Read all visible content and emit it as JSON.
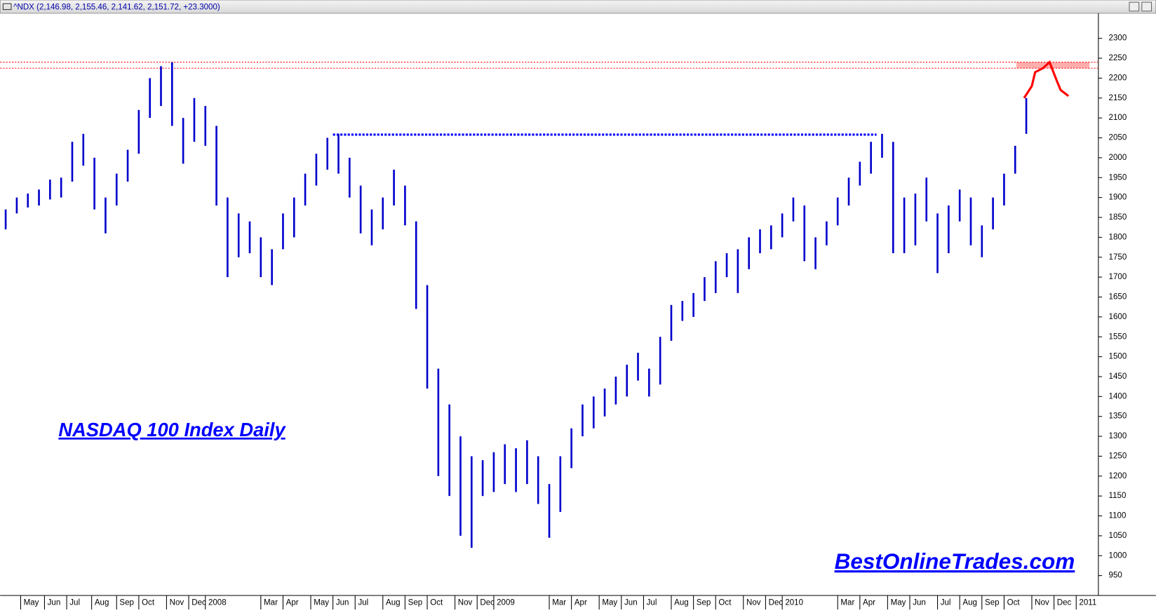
{
  "chart_data": {
    "type": "ohlc",
    "header": "^NDX (2,146.98, 2,155.46, 2,141.62, 2,151.72, +23.3000)",
    "title": "NASDAQ 100 Index Daily",
    "watermark": "BestOnlineTrades.com",
    "color": "#0000cc",
    "xlim": [
      0,
      99
    ],
    "ylim": [
      900,
      2363
    ],
    "yticks": [
      950,
      1000,
      1050,
      1100,
      1150,
      1200,
      1250,
      1300,
      1350,
      1400,
      1450,
      1500,
      1550,
      1600,
      1650,
      1700,
      1750,
      1800,
      1850,
      1900,
      1950,
      2000,
      2050,
      2100,
      2150,
      2200,
      2250,
      2300
    ],
    "xticks": [
      {
        "value": 1.85,
        "label": "May"
      },
      {
        "value": 4,
        "label": "Jun"
      },
      {
        "value": 6,
        "label": "Jul"
      },
      {
        "value": 8.25,
        "label": "Aug"
      },
      {
        "value": 10.5,
        "label": "Sep"
      },
      {
        "value": 12.5,
        "label": "Oct"
      },
      {
        "value": 15,
        "label": "Nov"
      },
      {
        "value": 17,
        "label": "Dec"
      },
      {
        "value": 18.5,
        "label": "2008"
      },
      {
        "value": 23.5,
        "label": "Mar"
      },
      {
        "value": 25.5,
        "label": "Apr"
      },
      {
        "value": 28,
        "label": "May"
      },
      {
        "value": 30,
        "label": "Jun"
      },
      {
        "value": 32,
        "label": "Jul"
      },
      {
        "value": 34.5,
        "label": "Aug"
      },
      {
        "value": 36.5,
        "label": "Sep"
      },
      {
        "value": 38.5,
        "label": "Oct"
      },
      {
        "value": 41,
        "label": "Nov"
      },
      {
        "value": 43,
        "label": "Dec"
      },
      {
        "value": 44.5,
        "label": "2009"
      },
      {
        "value": 49.5,
        "label": "Mar"
      },
      {
        "value": 51.5,
        "label": "Apr"
      },
      {
        "value": 54,
        "label": "May"
      },
      {
        "value": 56,
        "label": "Jun"
      },
      {
        "value": 58,
        "label": "Jul"
      },
      {
        "value": 60.5,
        "label": "Aug"
      },
      {
        "value": 62.5,
        "label": "Sep"
      },
      {
        "value": 64.5,
        "label": "Oct"
      },
      {
        "value": 67,
        "label": "Nov"
      },
      {
        "value": 69,
        "label": "Dec"
      },
      {
        "value": 70.5,
        "label": "2010"
      },
      {
        "value": 75.5,
        "label": "Mar"
      },
      {
        "value": 77.5,
        "label": "Apr"
      },
      {
        "value": 80,
        "label": "May"
      },
      {
        "value": 82,
        "label": "Jun"
      },
      {
        "value": 84.5,
        "label": "Jul"
      },
      {
        "value": 86.5,
        "label": "Aug"
      },
      {
        "value": 88.5,
        "label": "Sep"
      },
      {
        "value": 90.5,
        "label": "Oct"
      },
      {
        "value": 93,
        "label": "Nov"
      },
      {
        "value": 95,
        "label": "Dec"
      },
      {
        "value": 97,
        "label": "2011"
      }
    ],
    "high": [
      1870,
      1900,
      1910,
      1920,
      1945,
      1950,
      2040,
      2060,
      2000,
      1900,
      1960,
      2020,
      2120,
      2200,
      2230,
      2240,
      2100,
      2150,
      2130,
      2080,
      1900,
      1860,
      1840,
      1800,
      1770,
      1860,
      1900,
      1960,
      2010,
      2050,
      2060,
      2000,
      1930,
      1870,
      1900,
      1970,
      1930,
      1840,
      1680,
      1470,
      1380,
      1300,
      1250,
      1240,
      1260,
      1280,
      1270,
      1290,
      1250,
      1180,
      1250,
      1320,
      1380,
      1400,
      1420,
      1450,
      1480,
      1510,
      1470,
      1550,
      1630,
      1640,
      1660,
      1700,
      1740,
      1760,
      1770,
      1800,
      1820,
      1830,
      1860,
      1900,
      1880,
      1800,
      1840,
      1900,
      1950,
      1990,
      2040,
      2060,
      2040,
      1900,
      1910,
      1950,
      1860,
      1880,
      1920,
      1900,
      1830,
      1900,
      1960,
      2030,
      2150
    ],
    "low": [
      1820,
      1860,
      1875,
      1880,
      1895,
      1900,
      1940,
      1980,
      1870,
      1810,
      1880,
      1940,
      2010,
      2100,
      2130,
      2080,
      1985,
      2040,
      2030,
      1880,
      1700,
      1750,
      1760,
      1700,
      1680,
      1770,
      1800,
      1880,
      1930,
      1970,
      1960,
      1900,
      1810,
      1780,
      1820,
      1880,
      1830,
      1620,
      1420,
      1200,
      1150,
      1050,
      1020,
      1150,
      1160,
      1180,
      1160,
      1180,
      1130,
      1045,
      1110,
      1220,
      1300,
      1320,
      1350,
      1380,
      1400,
      1440,
      1400,
      1430,
      1540,
      1590,
      1600,
      1640,
      1660,
      1700,
      1660,
      1720,
      1760,
      1770,
      1800,
      1840,
      1740,
      1720,
      1780,
      1830,
      1880,
      1930,
      1960,
      2000,
      1760,
      1760,
      1780,
      1840,
      1710,
      1760,
      1840,
      1780,
      1750,
      1820,
      1880,
      1960,
      2060
    ],
    "hlines": [
      {
        "value": 2240,
        "color": "#ff0000"
      },
      {
        "value": 2225,
        "color": "#ff0000"
      }
    ],
    "dotted_line": {
      "value": 2058,
      "from": 30,
      "to": 79,
      "color": "#0000ff"
    },
    "zone": {
      "from": 91.6,
      "to": 98.2,
      "low": 2225,
      "high": 2240,
      "color": "#ff9999"
    },
    "projection": {
      "color": "#ff0000",
      "x": [
        92.3,
        93,
        93.3,
        94,
        94.6,
        95.3,
        95.6,
        96.3
      ],
      "values": [
        2150,
        2180,
        2215,
        2225,
        2240,
        2190,
        2170,
        2155
      ]
    }
  }
}
